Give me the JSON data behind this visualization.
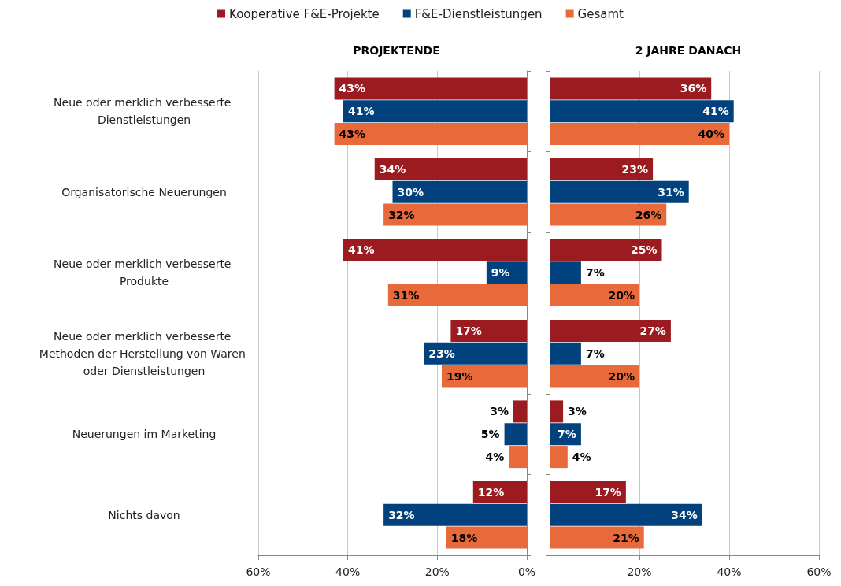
{
  "chart_data": [
    {
      "type": "bar",
      "orientation": "horizontal",
      "title": "PROJEKTENDE",
      "categories": [
        "Neue oder merklich verbesserte Dienstleistungen",
        "Organisatorische Neuerungen",
        "Neue oder merklich verbesserte Produkte",
        "Neue oder merklich verbesserte Methoden der Herstellung von Waren oder Dienstleistungen",
        "Neuerungen im Marketing",
        "Nichts davon"
      ],
      "series": [
        {
          "name": "Kooperative F&E-Projekte",
          "color": "#9b1b20",
          "values": [
            43,
            34,
            41,
            17,
            3,
            12
          ],
          "value_labels": [
            "43%",
            "34%",
            "41%",
            "17%",
            "3%",
            "12%"
          ]
        },
        {
          "name": "F&E-Dienstleistungen",
          "color": "#00417e",
          "values": [
            41,
            30,
            9,
            23,
            5,
            32
          ],
          "value_labels": [
            "41%",
            "30%",
            "9%",
            "23%",
            "5%",
            "32%"
          ]
        },
        {
          "name": "Gesamt",
          "color": "#e8693a",
          "values": [
            43,
            32,
            31,
            19,
            4,
            18
          ],
          "value_labels": [
            "43%",
            "32%",
            "31%",
            "19%",
            "4%",
            "18%"
          ]
        }
      ],
      "xlim": [
        60,
        0
      ],
      "xticks": [
        {
          "value": 60,
          "label": "60%"
        },
        {
          "value": 40,
          "label": "40%"
        },
        {
          "value": 20,
          "label": "20%"
        },
        {
          "value": 0,
          "label": "0%"
        }
      ],
      "grid": "x",
      "legend": "top"
    },
    {
      "type": "bar",
      "orientation": "horizontal",
      "title": "2 JAHRE DANACH",
      "categories": [
        "Neue oder merklich verbesserte Dienstleistungen",
        "Organisatorische Neuerungen",
        "Neue oder merklich verbesserte Produkte",
        "Neue oder merklich verbesserte Methoden der Herstellung von Waren oder Dienstleistungen",
        "Neuerungen im Marketing",
        "Nichts davon"
      ],
      "series": [
        {
          "name": "Kooperative F&E-Projekte",
          "color": "#9b1b20",
          "values": [
            36,
            23,
            25,
            27,
            3,
            17
          ],
          "value_labels": [
            "36%",
            "23%",
            "25%",
            "27%",
            "3%",
            "17%"
          ]
        },
        {
          "name": "F&E-Dienstleistungen",
          "color": "#00417e",
          "values": [
            41,
            31,
            7,
            7,
            7,
            34
          ],
          "value_labels": [
            "41%",
            "31%",
            "7%",
            "7%",
            "7%",
            "34%"
          ]
        },
        {
          "name": "Gesamt",
          "color": "#e8693a",
          "values": [
            40,
            26,
            20,
            20,
            4,
            21
          ],
          "value_labels": [
            "40%",
            "26%",
            "20%",
            "20%",
            "4%",
            "21%"
          ]
        }
      ],
      "xlim": [
        0,
        60
      ],
      "xticks": [
        {
          "value": 0,
          "label": null
        },
        {
          "value": 20,
          "label": "20%"
        },
        {
          "value": 40,
          "label": "40%"
        },
        {
          "value": 60,
          "label": "60%"
        }
      ],
      "grid": "x",
      "tick_labels": "x"
    }
  ]
}
